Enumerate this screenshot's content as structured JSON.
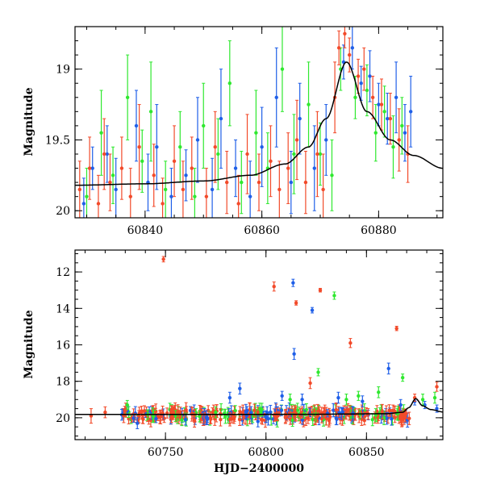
{
  "colors": {
    "blue": "#1f5fe8",
    "green": "#2fe82f",
    "red": "#f24a2a",
    "model": "#000000"
  },
  "chart_data": [
    {
      "type": "scatter",
      "panel": "top",
      "xlabel": "",
      "ylabel": "Magnitude",
      "xlim": [
        60828,
        60891
      ],
      "ylim": [
        20.05,
        18.7
      ],
      "y_inverted": true,
      "xticks": [
        60840,
        60860,
        60880
      ],
      "yticks": [
        19,
        19.5,
        20
      ],
      "ytick_labels": [
        "19",
        "19.5",
        "20"
      ],
      "model_curve": {
        "t0": 60874.5,
        "peak_mag": 18.95,
        "baseline_mag": 19.82,
        "tE": 8.5,
        "x": [
          60828,
          60840,
          60850,
          60858,
          60864,
          60868,
          60871,
          60874.5,
          60878,
          60882,
          60886,
          60891
        ],
        "y": [
          19.82,
          19.81,
          19.79,
          19.75,
          19.67,
          19.55,
          19.35,
          18.95,
          19.3,
          19.5,
          19.61,
          19.7
        ]
      },
      "series": [
        {
          "color": "blue",
          "points": [
            [
              60829.5,
              19.95,
              0.18
            ],
            [
              60831,
              19.7,
              0.15
            ],
            [
              60833.5,
              19.6,
              0.2
            ],
            [
              60835,
              19.85,
              0.22
            ],
            [
              60838.5,
              19.4,
              0.25
            ],
            [
              60840.5,
              19.8,
              0.2
            ],
            [
              60842,
              19.55,
              0.3
            ],
            [
              60844.5,
              19.9,
              0.2
            ],
            [
              60847,
              19.75,
              0.18
            ],
            [
              60849,
              19.5,
              0.3
            ],
            [
              60851.5,
              19.85,
              0.22
            ],
            [
              60853,
              19.35,
              0.35
            ],
            [
              60855.5,
              19.7,
              0.2
            ],
            [
              60858,
              19.9,
              0.25
            ],
            [
              60860,
              19.55,
              0.28
            ],
            [
              60862.5,
              19.2,
              0.35
            ],
            [
              60865,
              19.8,
              0.22
            ],
            [
              60866.5,
              19.35,
              0.25
            ],
            [
              60869,
              19.7,
              0.3
            ],
            [
              60871,
              19.5,
              0.25
            ],
            [
              60874,
              18.95,
              0.12
            ],
            [
              60875.5,
              18.85,
              0.15
            ],
            [
              60877,
              19.1,
              0.12
            ],
            [
              60878.5,
              19.05,
              0.18
            ],
            [
              60880,
              19.25,
              0.15
            ],
            [
              60881.5,
              19.35,
              0.18
            ],
            [
              60883,
              19.2,
              0.25
            ],
            [
              60884.5,
              19.45,
              0.2
            ],
            [
              60885.5,
              19.3,
              0.25
            ]
          ]
        },
        {
          "color": "green",
          "points": [
            [
              60830,
              19.9,
              0.2
            ],
            [
              60832.5,
              19.45,
              0.3
            ],
            [
              60834.5,
              19.75,
              0.2
            ],
            [
              60837,
              19.2,
              0.3
            ],
            [
              60839.5,
              19.65,
              0.22
            ],
            [
              60841,
              19.3,
              0.35
            ],
            [
              60843.5,
              19.85,
              0.2
            ],
            [
              60846,
              19.55,
              0.25
            ],
            [
              60848.5,
              19.9,
              0.2
            ],
            [
              60850,
              19.4,
              0.3
            ],
            [
              60852.5,
              19.6,
              0.25
            ],
            [
              60854.5,
              19.1,
              0.3
            ],
            [
              60856.5,
              19.8,
              0.22
            ],
            [
              60859,
              19.45,
              0.3
            ],
            [
              60861,
              19.7,
              0.25
            ],
            [
              60863.5,
              19.0,
              0.3
            ],
            [
              60865.5,
              19.6,
              0.28
            ],
            [
              60868,
              19.25,
              0.3
            ],
            [
              60870,
              19.6,
              0.22
            ],
            [
              60872,
              19.75,
              0.25
            ],
            [
              60873.5,
              19.0,
              0.15
            ],
            [
              60876,
              19.2,
              0.15
            ],
            [
              60878,
              19.15,
              0.18
            ],
            [
              60879.5,
              19.45,
              0.2
            ],
            [
              60881,
              19.3,
              0.18
            ],
            [
              60882.5,
              19.55,
              0.22
            ],
            [
              60884,
              19.4,
              0.2
            ]
          ]
        },
        {
          "color": "red",
          "points": [
            [
              60828.8,
              19.85,
              0.2
            ],
            [
              60830.5,
              19.7,
              0.22
            ],
            [
              60832,
              19.95,
              0.2
            ],
            [
              60833,
              19.6,
              0.25
            ],
            [
              60834,
              19.8,
              0.2
            ],
            [
              60836,
              19.7,
              0.22
            ],
            [
              60837.5,
              19.9,
              0.2
            ],
            [
              60839,
              19.55,
              0.3
            ],
            [
              60841.5,
              19.75,
              0.22
            ],
            [
              60843,
              19.95,
              0.18
            ],
            [
              60845,
              19.65,
              0.25
            ],
            [
              60846.5,
              19.85,
              0.2
            ],
            [
              60848,
              19.7,
              0.22
            ],
            [
              60850.5,
              19.9,
              0.2
            ],
            [
              60852,
              19.55,
              0.25
            ],
            [
              60854,
              19.8,
              0.22
            ],
            [
              60856,
              19.95,
              0.2
            ],
            [
              60857.5,
              19.6,
              0.28
            ],
            [
              60859.5,
              19.8,
              0.2
            ],
            [
              60861.5,
              19.65,
              0.25
            ],
            [
              60863,
              19.85,
              0.2
            ],
            [
              60864.5,
              19.7,
              0.25
            ],
            [
              60866,
              19.5,
              0.28
            ],
            [
              60867.5,
              19.8,
              0.22
            ],
            [
              60869.5,
              19.6,
              0.3
            ],
            [
              60870.5,
              19.85,
              0.25
            ],
            [
              60872.5,
              19.2,
              0.25
            ],
            [
              60873.2,
              18.85,
              0.12
            ],
            [
              60874.2,
              18.75,
              0.1
            ],
            [
              60875,
              18.9,
              0.12
            ],
            [
              60876.5,
              19.05,
              0.12
            ],
            [
              60877.5,
              19.0,
              0.15
            ],
            [
              60879,
              19.2,
              0.15
            ],
            [
              60880.5,
              19.25,
              0.18
            ],
            [
              60882,
              19.35,
              0.18
            ],
            [
              60883.5,
              19.5,
              0.22
            ],
            [
              60885,
              19.6,
              0.2
            ]
          ]
        }
      ]
    },
    {
      "type": "scatter",
      "panel": "bottom",
      "xlabel": "HJD−2400000",
      "ylabel": "Magnitude",
      "xlim": [
        60705,
        60888
      ],
      "ylim": [
        21.2,
        10.8
      ],
      "y_inverted": true,
      "xticks": [
        60750,
        60800,
        60850
      ],
      "yticks": [
        12,
        14,
        16,
        18,
        20
      ],
      "ytick_labels": [
        "12",
        "14",
        "16",
        "18",
        "20"
      ],
      "model_curve": {
        "x": [
          60705,
          60760,
          60820,
          60860,
          60868,
          60871,
          60874.5,
          60878,
          60882,
          60888
        ],
        "y": [
          19.82,
          19.82,
          19.81,
          19.78,
          19.7,
          19.45,
          18.95,
          19.35,
          19.55,
          19.68
        ]
      },
      "series": [
        {
          "color": "blue",
          "points": [
            [
              60736,
              20.3,
              0.3
            ],
            [
              60760,
              20.1,
              0.3
            ],
            [
              60782,
              18.9,
              0.3
            ],
            [
              60787,
              18.4,
              0.3
            ],
            [
              60796,
              20.2,
              0.3
            ],
            [
              60808,
              18.8,
              0.25
            ],
            [
              60813.5,
              12.6,
              0.2
            ],
            [
              60814,
              16.5,
              0.3
            ],
            [
              60818,
              19.0,
              0.3
            ],
            [
              60823,
              14.1,
              0.15
            ],
            [
              60836,
              18.9,
              0.3
            ],
            [
              60848,
              19.1,
              0.3
            ],
            [
              60861,
              17.3,
              0.3
            ],
            [
              60867,
              19.3,
              0.3
            ],
            [
              60874,
              19.1,
              0.2
            ],
            [
              60879,
              19.3,
              0.2
            ],
            [
              60885,
              19.5,
              0.2
            ]
          ]
        },
        {
          "color": "green",
          "points": [
            [
              60731,
              19.3,
              0.25
            ],
            [
              60755,
              19.9,
              0.3
            ],
            [
              60775,
              19.7,
              0.3
            ],
            [
              60797,
              19.5,
              0.3
            ],
            [
              60812,
              19.0,
              0.3
            ],
            [
              60826,
              17.5,
              0.2
            ],
            [
              60834,
              13.3,
              0.2
            ],
            [
              60840,
              19.0,
              0.3
            ],
            [
              60846,
              18.8,
              0.25
            ],
            [
              60856,
              18.6,
              0.3
            ],
            [
              60868,
              17.8,
              0.2
            ],
            [
              60878,
              19.0,
              0.3
            ],
            [
              60884,
              18.9,
              0.3
            ]
          ]
        },
        {
          "color": "red",
          "points": [
            [
              60713,
              19.9,
              0.4
            ],
            [
              60720,
              19.7,
              0.3
            ],
            [
              60749,
              11.3,
              0.15
            ],
            [
              60804,
              12.8,
              0.25
            ],
            [
              60815,
              13.7,
              0.12
            ],
            [
              60822,
              18.1,
              0.3
            ],
            [
              60827,
              13.0,
              0.1
            ],
            [
              60842,
              15.9,
              0.25
            ],
            [
              60865,
              15.1,
              0.12
            ],
            [
              60874,
              18.9,
              0.2
            ],
            [
              60885,
              18.3,
              0.25
            ]
          ]
        }
      ],
      "dense_band": {
        "x_range": [
          60728,
          60872
        ],
        "center_mag": 19.85,
        "spread": 0.3
      }
    }
  ]
}
